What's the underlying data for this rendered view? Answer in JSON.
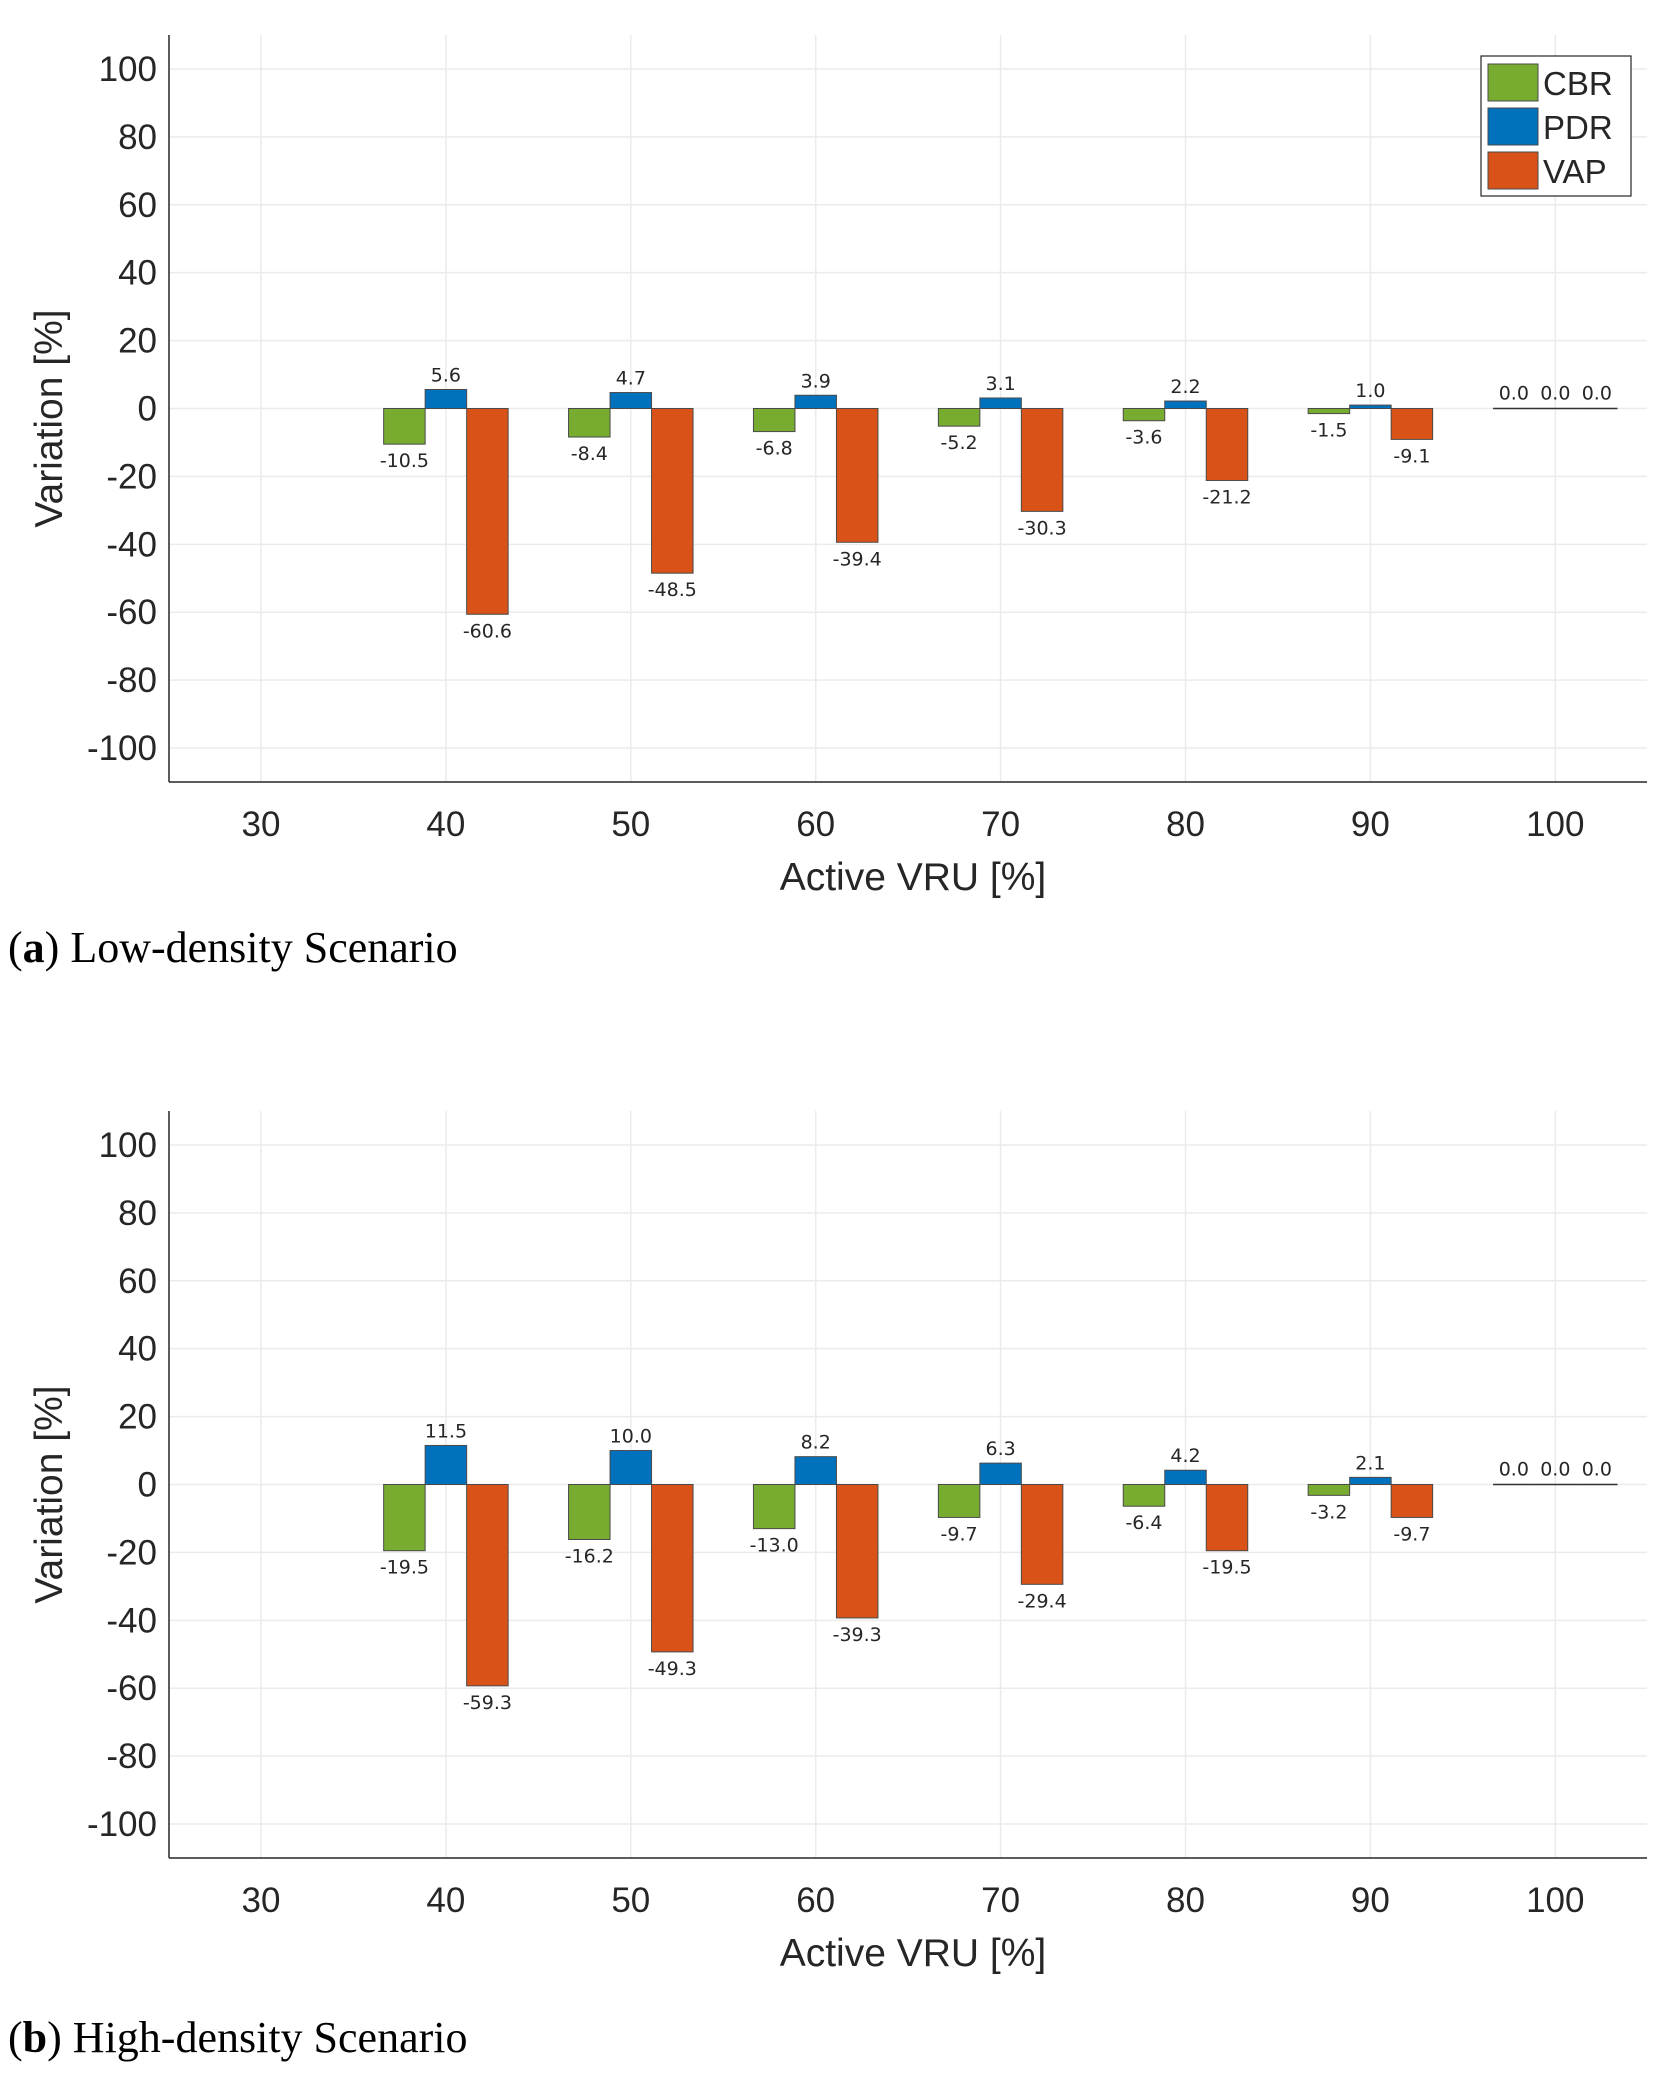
{
  "chart_data": [
    {
      "type": "bar",
      "caption_letter": "a",
      "caption_text": "Low-density Scenario",
      "xlabel": "Active VRU [%]",
      "ylabel": "Variation [%]",
      "ylim": [
        -110,
        110
      ],
      "yticks": [
        "100",
        "80",
        "60",
        "40",
        "20",
        "0",
        "-20",
        "-40",
        "-60",
        "-80",
        "-100"
      ],
      "categories": [
        "30",
        "40",
        "50",
        "60",
        "70",
        "80",
        "90",
        "100"
      ],
      "grid": true,
      "legend_position": "top-right",
      "series": [
        {
          "name": "CBR",
          "color": "#77AC30",
          "values": [
            null,
            -10.5,
            -8.4,
            -6.8,
            -5.2,
            -3.6,
            -1.5,
            0.0
          ],
          "labels": [
            "",
            "-10.5",
            "-8.4",
            "-6.8",
            "-5.2",
            "-3.6",
            "-1.5",
            "0.0"
          ]
        },
        {
          "name": "PDR",
          "color": "#0072BD",
          "values": [
            null,
            5.6,
            4.7,
            3.9,
            3.1,
            2.2,
            1.0,
            0.0
          ],
          "labels": [
            "",
            "5.6",
            "4.7",
            "3.9",
            "3.1",
            "2.2",
            "1.0",
            "0.0"
          ]
        },
        {
          "name": "VAP",
          "color": "#D95319",
          "values": [
            null,
            -60.6,
            -48.5,
            -39.4,
            -30.3,
            -21.2,
            -9.1,
            0.0
          ],
          "labels": [
            "",
            "-60.6",
            "-48.5",
            "-39.4",
            "-30.3",
            "-21.2",
            "-9.1",
            "0.0"
          ]
        }
      ]
    },
    {
      "type": "bar",
      "caption_letter": "b",
      "caption_text": "High-density Scenario",
      "xlabel": "Active VRU [%]",
      "ylabel": "Variation [%]",
      "ylim": [
        -110,
        110
      ],
      "yticks": [
        "100",
        "80",
        "60",
        "40",
        "20",
        "0",
        "-20",
        "-40",
        "-60",
        "-80",
        "-100"
      ],
      "categories": [
        "30",
        "40",
        "50",
        "60",
        "70",
        "80",
        "90",
        "100"
      ],
      "grid": true,
      "legend_position": "none",
      "series": [
        {
          "name": "CBR",
          "color": "#77AC30",
          "values": [
            null,
            -19.5,
            -16.2,
            -13.0,
            -9.7,
            -6.4,
            -3.2,
            0.0
          ],
          "labels": [
            "",
            "-19.5",
            "-16.2",
            "-13.0",
            "-9.7",
            "-6.4",
            "-3.2",
            "0.0"
          ]
        },
        {
          "name": "PDR",
          "color": "#0072BD",
          "values": [
            null,
            11.5,
            10.0,
            8.2,
            6.3,
            4.2,
            2.1,
            0.0
          ],
          "labels": [
            "",
            "11.5",
            "10.0",
            "8.2",
            "6.3",
            "4.2",
            "2.1",
            "0.0"
          ]
        },
        {
          "name": "VAP",
          "color": "#D95319",
          "values": [
            null,
            -59.3,
            -49.3,
            -39.3,
            -29.4,
            -19.5,
            -9.7,
            0.0
          ],
          "labels": [
            "",
            "-59.3",
            "-49.3",
            "-39.3",
            "-29.4",
            "-19.5",
            "-9.7",
            "0.0"
          ]
        }
      ]
    }
  ]
}
